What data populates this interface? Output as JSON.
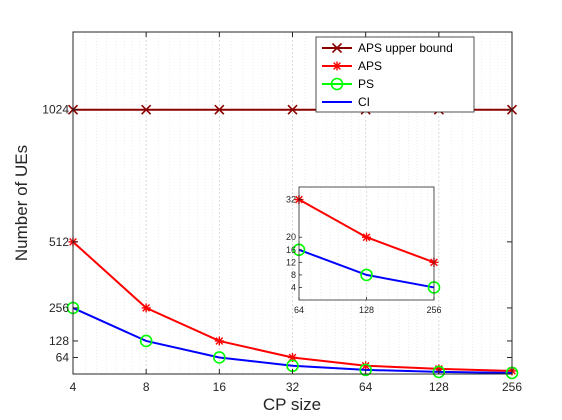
{
  "chart_data": {
    "type": "line",
    "xlabel": "CP size",
    "ylabel": "Number of UEs",
    "x_scale": "log2",
    "categories": [
      "4",
      "8",
      "16",
      "32",
      "64",
      "128",
      "256"
    ],
    "x": [
      4,
      8,
      16,
      32,
      64,
      128,
      256
    ],
    "yticks": [
      64,
      128,
      256,
      512,
      1024
    ],
    "ytick_labels": [
      "64",
      "128",
      "256",
      "512",
      "1024"
    ],
    "ylim": [
      0,
      1325
    ],
    "grid": "x",
    "legend_position": "top-right",
    "series": [
      {
        "name": "APS upper bound",
        "color": "#8b0000",
        "marker": "x",
        "values": [
          1024,
          1024,
          1024,
          1024,
          1024,
          1024,
          1024
        ]
      },
      {
        "name": "APS",
        "color": "#ff0000",
        "marker": "*",
        "values": [
          512,
          256,
          128,
          64,
          32,
          20,
          12
        ]
      },
      {
        "name": "PS",
        "color": "#00ff00",
        "marker": "o",
        "values": [
          256,
          128,
          64,
          32,
          16,
          8,
          4
        ]
      },
      {
        "name": "CI",
        "color": "#0000ff",
        "marker": "none",
        "values": [
          256,
          128,
          64,
          32,
          16,
          8,
          4
        ]
      }
    ],
    "inset": {
      "categories": [
        "64",
        "128",
        "256"
      ],
      "x": [
        64,
        128,
        256
      ],
      "yticks": [
        4,
        8,
        12,
        16,
        20,
        32
      ],
      "ytick_labels": [
        "4",
        "8",
        "12",
        "16",
        "20",
        "32"
      ],
      "ylim": [
        0,
        36
      ],
      "series_values": {
        "APS": [
          32,
          20,
          12
        ],
        "PS": [
          16,
          8,
          4
        ],
        "CI": [
          16,
          8,
          4
        ]
      }
    }
  }
}
